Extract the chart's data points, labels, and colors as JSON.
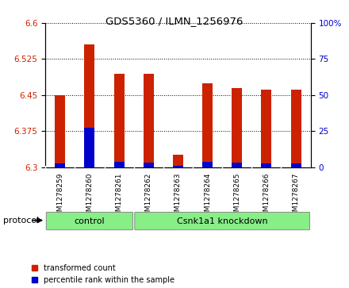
{
  "title": "GDS5360 / ILMN_1256976",
  "samples": [
    "GSM1278259",
    "GSM1278260",
    "GSM1278261",
    "GSM1278262",
    "GSM1278263",
    "GSM1278264",
    "GSM1278265",
    "GSM1278266",
    "GSM1278267"
  ],
  "red_values": [
    6.449,
    6.555,
    6.494,
    6.494,
    6.326,
    6.474,
    6.464,
    6.462,
    6.461
  ],
  "blue_values": [
    6.307,
    6.382,
    6.31,
    6.309,
    6.302,
    6.311,
    6.309,
    6.308,
    6.308
  ],
  "ymin": 6.3,
  "ymax": 6.6,
  "yticks_left": [
    6.3,
    6.375,
    6.45,
    6.525,
    6.6
  ],
  "yticks_right": [
    0,
    25,
    50,
    75,
    100
  ],
  "bar_width": 0.35,
  "red_color": "#cc2200",
  "blue_color": "#0000cc",
  "n_control": 3,
  "n_knockdown": 6,
  "control_label": "control",
  "knockdown_label": "Csnk1a1 knockdown",
  "protocol_label": "protocol",
  "legend_red": "transformed count",
  "legend_blue": "percentile rank within the sample",
  "group_color": "#88ee88",
  "tick_label_color_left": "#cc2200",
  "tick_label_color_right": "#0000cc",
  "xtick_bg_color": "#d3d3d3",
  "plot_bg_color": "#ffffff"
}
